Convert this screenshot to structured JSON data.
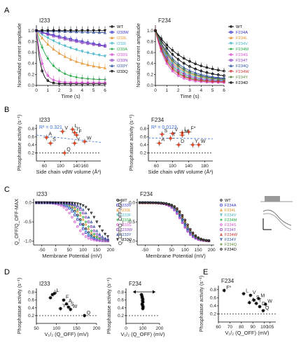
{
  "panels": {
    "A": "A",
    "B": "B",
    "C": "C",
    "D": "D",
    "E": "E"
  },
  "chart_data": [
    {
      "id": "A-I233",
      "type": "line",
      "title": "I233",
      "xlabel": "Time (s)",
      "ylabel": "Normalized current amplitude",
      "xlim": [
        0,
        6
      ],
      "ylim": [
        0,
        1.1
      ],
      "xticks": [
        0,
        1,
        2,
        3,
        4,
        5,
        6
      ],
      "yticks": [
        0.0,
        0.2,
        0.4,
        0.6,
        0.8,
        1.0
      ],
      "ytick_labels": [
        "0.0",
        "0.2",
        "0.4",
        "0.6",
        "0.8",
        "1.0"
      ],
      "series": [
        {
          "name": "WT",
          "color": "#000000",
          "tau": 0.35,
          "inf": 0.03
        },
        {
          "name": "I233W",
          "color": "#3333cc",
          "tau": 12,
          "inf": 0.3
        },
        {
          "name": "I233L",
          "color": "#e8902a",
          "tau": 2.5,
          "inf": 0.25
        },
        {
          "name": "I233I",
          "color": "#44b5c8",
          "tau": 4.0,
          "inf": 0.4
        },
        {
          "name": "I233A",
          "color": "#22aa44",
          "tau": 1.2,
          "inf": 0.1
        },
        {
          "name": "I233S",
          "color": "#d64fd0",
          "tau": 0.5,
          "inf": 0.05
        },
        {
          "name": "I233N",
          "color": "#8a3fc0",
          "tau": 6,
          "inf": 0.55
        },
        {
          "name": "I233Y",
          "color": "#2c4fa0",
          "tau": 30,
          "inf": 0.8
        },
        {
          "name": "I233Q",
          "color": "#000000",
          "tau": 200,
          "inf": 0.99
        }
      ]
    },
    {
      "id": "A-F234",
      "type": "line",
      "title": "F234",
      "xlabel": "Time (s)",
      "ylabel": "Normalized current amplitude",
      "xlim": [
        0,
        6
      ],
      "ylim": [
        0,
        1.1
      ],
      "xticks": [
        0,
        1,
        2,
        3,
        4,
        5,
        6
      ],
      "yticks": [
        0.0,
        0.2,
        0.4,
        0.6,
        0.8,
        1.0
      ],
      "ytick_labels": [
        "0.0",
        "0.2",
        "0.4",
        "0.6",
        "0.8",
        "1.0"
      ],
      "series": [
        {
          "name": "WT",
          "color": "#000000",
          "tau": 2.2,
          "inf": 0.12
        },
        {
          "name": "F234A",
          "color": "#3333cc",
          "tau": 1.6,
          "inf": 0.1
        },
        {
          "name": "F234L",
          "color": "#e8902a",
          "tau": 1.5,
          "inf": 0.09
        },
        {
          "name": "F234V",
          "color": "#44b5c8",
          "tau": 1.4,
          "inf": 0.08
        },
        {
          "name": "F234M",
          "color": "#22aa44",
          "tau": 1.2,
          "inf": 0.06
        },
        {
          "name": "F234S",
          "color": "#d64fd0",
          "tau": 1.0,
          "inf": 0.05
        },
        {
          "name": "F234T",
          "color": "#8a3fc0",
          "tau": 1.3,
          "inf": 0.07
        },
        {
          "name": "F234Q",
          "color": "#2c4fa0",
          "tau": 1.8,
          "inf": 0.1
        },
        {
          "name": "F234W",
          "color": "#cc3333",
          "tau": 1.1,
          "inf": 0.06
        },
        {
          "name": "F234Y",
          "color": "#5a8a3a",
          "tau": 1.7,
          "inf": 0.08
        },
        {
          "name": "F234D",
          "color": "#000000",
          "tau": 2.6,
          "inf": 0.18
        }
      ]
    },
    {
      "id": "B-I233",
      "type": "scatter",
      "title": "I233",
      "xlabel": "Side chain vdW volume (Å³)",
      "ylabel": "Phosphatase activity (s⁻¹)",
      "annotation": "R² = 0.321",
      "xlim": [
        40,
        200
      ],
      "ylim": [
        0,
        0.9
      ],
      "xticks": [
        60,
        100,
        140,
        160
      ],
      "yticks": [
        0.2,
        0.4,
        0.6,
        0.8
      ],
      "points": [
        {
          "label": "V",
          "x": 105,
          "y": 0.73
        },
        {
          "label": "L",
          "x": 130,
          "y": 0.78
        },
        {
          "label": "I*",
          "x": 135,
          "y": 0.7
        },
        {
          "label": "F",
          "x": 140,
          "y": 0.64
        },
        {
          "label": "A",
          "x": 65,
          "y": 0.58
        },
        {
          "label": "S",
          "x": 75,
          "y": 0.44
        },
        {
          "label": "Y",
          "x": 135,
          "y": 0.44
        },
        {
          "label": "W",
          "x": 160,
          "y": 0.48
        },
        {
          "label": "Q",
          "x": 110,
          "y": 0.2
        }
      ],
      "trend": [
        [
          40,
          0.64
        ],
        [
          200,
          0.46
        ]
      ]
    },
    {
      "id": "B-F234",
      "type": "scatter",
      "title": "F234",
      "xlabel": "Side chain vdW volume (Å³)",
      "ylabel": "Phosphatase activity (s⁻¹)",
      "annotation": "R² = 0.0123",
      "xlim": [
        40,
        200
      ],
      "ylim": [
        0,
        0.9
      ],
      "xticks": [
        60,
        100,
        140,
        180
      ],
      "yticks": [
        0.2,
        0.4,
        0.6,
        0.8
      ],
      "points": [
        {
          "label": "F*",
          "x": 140,
          "y": 0.72
        },
        {
          "label": "S",
          "x": 74,
          "y": 0.66
        },
        {
          "label": "V",
          "x": 100,
          "y": 0.68
        },
        {
          "label": "L",
          "x": 124,
          "y": 0.7
        },
        {
          "label": "M",
          "x": 124,
          "y": 0.64
        },
        {
          "label": "T",
          "x": 95,
          "y": 0.56
        },
        {
          "label": "A",
          "x": 67,
          "y": 0.44
        },
        {
          "label": "D",
          "x": 115,
          "y": 0.4
        },
        {
          "label": "Y",
          "x": 150,
          "y": 0.4
        },
        {
          "label": "W",
          "x": 165,
          "y": 0.4
        }
      ],
      "trend": [
        [
          40,
          0.57
        ],
        [
          200,
          0.55
        ]
      ]
    },
    {
      "id": "C-I233",
      "type": "scatter",
      "title": "I233",
      "xlabel": "Membrane Potential (mV)",
      "ylabel": "Q_OFF/Q_OFF-MAX",
      "xlim": [
        -80,
        200
      ],
      "ylim": [
        -1.1,
        0.1
      ],
      "xticks": [
        -50,
        0,
        50,
        100,
        150,
        200
      ],
      "yticks": [
        0.0,
        -0.5,
        -1.0
      ],
      "ytick_labels": [
        "0.0",
        "-0.5",
        "-1.0"
      ],
      "series": [
        {
          "name": "WT",
          "color": "#000000",
          "v50": 95
        },
        {
          "name": "I233V",
          "color": "#3333cc",
          "v50": 85
        },
        {
          "name": "I233L",
          "color": "#e8902a",
          "v50": 105
        },
        {
          "name": "I233F",
          "color": "#44b5c8",
          "v50": 90
        },
        {
          "name": "I233A",
          "color": "#22aa44",
          "v50": 110
        },
        {
          "name": "I233S",
          "color": "#d64fd0",
          "v50": 70
        },
        {
          "name": "I233W",
          "color": "#8a3fc0",
          "v50": 120
        },
        {
          "name": "I233Y",
          "color": "#2c4fa0",
          "v50": 130
        },
        {
          "name": "I233Q",
          "color": "#000000",
          "v50": 150
        }
      ]
    },
    {
      "id": "C-F234",
      "type": "scatter",
      "title": "F234",
      "xlabel": "Membrane Potential (mV)",
      "ylabel": "Q_OFF/Q_OFF-MAX",
      "xlim": [
        -80,
        210
      ],
      "ylim": [
        -1.1,
        0.1
      ],
      "xticks": [
        -50,
        0,
        50,
        100,
        150,
        200
      ],
      "yticks": [
        0.0,
        -0.5,
        -1.0
      ],
      "ytick_labels": [
        "0.0",
        "-0.5",
        "-1.0"
      ],
      "series": [
        {
          "name": "WT",
          "color": "#000000",
          "v50": 95
        },
        {
          "name": "F234A",
          "color": "#3333cc",
          "v50": 90
        },
        {
          "name": "F234L",
          "color": "#e8902a",
          "v50": 100
        },
        {
          "name": "F234V",
          "color": "#44b5c8",
          "v50": 92
        },
        {
          "name": "F234M",
          "color": "#22aa44",
          "v50": 98
        },
        {
          "name": "F234S",
          "color": "#d64fd0",
          "v50": 88
        },
        {
          "name": "F234T",
          "color": "#8a3fc0",
          "v50": 96
        },
        {
          "name": "F234W",
          "color": "#cc3333",
          "v50": 102
        },
        {
          "name": "F234Y",
          "color": "#2c4fa0",
          "v50": 94
        },
        {
          "name": "F234Q",
          "color": "#5a8a3a",
          "v50": 99
        },
        {
          "name": "F234D",
          "color": "#000000",
          "v50": 104
        }
      ]
    },
    {
      "id": "D-I233",
      "type": "scatter",
      "title": "I233",
      "xlabel": "V₁/₂ (Q_OFF) (mV)",
      "ylabel": "Phosphatase activity (s⁻¹)",
      "xlim": [
        50,
        200
      ],
      "ylim": [
        0,
        0.9
      ],
      "xticks": [
        50,
        100,
        150,
        200
      ],
      "yticks": [
        0.2,
        0.4,
        0.6,
        0.8
      ],
      "points": [
        {
          "label": "V",
          "x": 90,
          "y": 0.74
        },
        {
          "label": "L",
          "x": 95,
          "y": 0.77
        },
        {
          "label": "I*",
          "x": 85,
          "y": 0.66
        },
        {
          "label": "F",
          "x": 118,
          "y": 0.6
        },
        {
          "label": "A",
          "x": 125,
          "y": 0.5
        },
        {
          "label": "S",
          "x": 130,
          "y": 0.42
        },
        {
          "label": "W",
          "x": 135,
          "y": 0.36
        },
        {
          "label": "Y",
          "x": 110,
          "y": 0.38
        },
        {
          "label": "Q",
          "x": 170,
          "y": 0.2
        }
      ]
    },
    {
      "id": "D-F234",
      "type": "scatter",
      "title": "F234",
      "xlabel": "V₁/₂ (Q_OFF) (mV)",
      "ylabel": "Phosphatase activity (s⁻¹)",
      "xlim": [
        0,
        200
      ],
      "ylim": [
        0,
        0.9
      ],
      "xticks": [
        0,
        100,
        200
      ],
      "yticks": [
        0.2,
        0.4,
        0.6,
        0.8
      ],
      "points": [
        {
          "label": "",
          "x": 92,
          "y": 0.74
        },
        {
          "label": "",
          "x": 95,
          "y": 0.7
        },
        {
          "label": "",
          "x": 97,
          "y": 0.66
        },
        {
          "label": "",
          "x": 100,
          "y": 0.62
        },
        {
          "label": "",
          "x": 98,
          "y": 0.58
        },
        {
          "label": "",
          "x": 101,
          "y": 0.55
        },
        {
          "label": "",
          "x": 96,
          "y": 0.5
        },
        {
          "label": "",
          "x": 99,
          "y": 0.46
        },
        {
          "label": "",
          "x": 102,
          "y": 0.42
        },
        {
          "label": "",
          "x": 100,
          "y": 0.38
        }
      ]
    },
    {
      "id": "E-F234",
      "type": "scatter",
      "title": "F234",
      "xlabel": "V₁/₂ (Q_OFF) (mV)",
      "ylabel": "Phosphatase activity (s⁻¹)",
      "xlim": [
        60,
        110
      ],
      "ylim": [
        0,
        0.9
      ],
      "xticks": [
        60,
        70,
        80,
        90,
        100,
        105
      ],
      "yticks": [
        0.2,
        0.4,
        0.6,
        0.8
      ],
      "points": [
        {
          "label": "F*",
          "x": 65,
          "y": 0.78
        },
        {
          "label": "L",
          "x": 82,
          "y": 0.7
        },
        {
          "label": "V",
          "x": 88,
          "y": 0.66
        },
        {
          "label": "M",
          "x": 95,
          "y": 0.58
        },
        {
          "label": "S",
          "x": 91,
          "y": 0.54
        },
        {
          "label": "A",
          "x": 87,
          "y": 0.48
        },
        {
          "label": "T",
          "x": 93,
          "y": 0.46
        },
        {
          "label": "W",
          "x": 101,
          "y": 0.44
        },
        {
          "label": "D",
          "x": 96,
          "y": 0.38
        },
        {
          "label": "Q",
          "x": 99,
          "y": 0.28
        }
      ]
    }
  ]
}
